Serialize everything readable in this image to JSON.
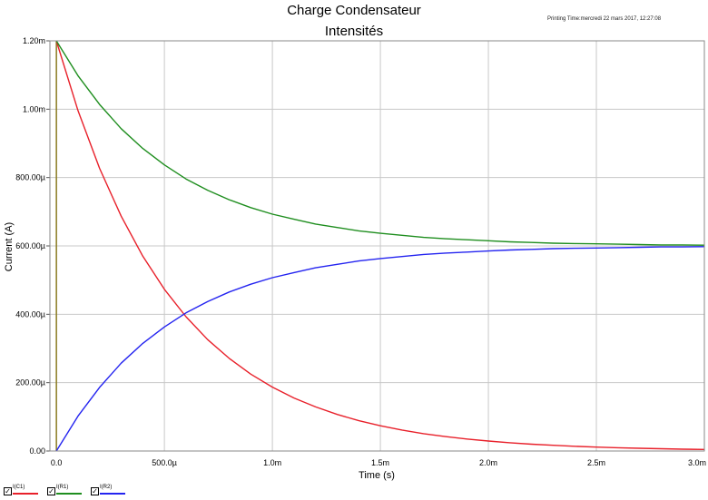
{
  "header": {
    "title": "Charge Condensateur",
    "subtitle": "Intensités",
    "printing_time": "Printing Time:mercredi 22 mars 2017, 12:27:08"
  },
  "chart_data": {
    "type": "line",
    "title": "Intensités",
    "xlabel": "Time (s)",
    "ylabel": "Current (A)",
    "xlim": [
      -3e-05,
      0.003
    ],
    "ylim": [
      0,
      0.0012
    ],
    "grid": true,
    "legend_position": "bottom-left",
    "x_ticks": [
      0,
      0.0005,
      0.001,
      0.0015,
      0.002,
      0.0025,
      0.003
    ],
    "x_tick_labels": [
      "0.0",
      "500.0µ",
      "1.0m",
      "1.5m",
      "2.0m",
      "2.5m",
      "3.0m"
    ],
    "y_ticks": [
      0,
      0.0002,
      0.0004,
      0.0006,
      0.0008,
      0.001,
      0.0012
    ],
    "y_tick_labels": [
      "0.00",
      "200.00µ",
      "400.00µ",
      "600.00µ",
      "800.00µ",
      "1.00m",
      "1.20m"
    ],
    "x": [
      0,
      0.0001,
      0.0002,
      0.0003,
      0.0004,
      0.0005,
      0.0006,
      0.0007,
      0.0008,
      0.0009,
      0.001,
      0.0011,
      0.0012,
      0.0013,
      0.0014,
      0.0015,
      0.0016,
      0.0017,
      0.0018,
      0.0019,
      0.002,
      0.0021,
      0.0022,
      0.0023,
      0.0024,
      0.0025,
      0.0026,
      0.0027,
      0.0028,
      0.0029,
      0.003
    ],
    "series": [
      {
        "name": "I(C1)",
        "color": "#e8202a",
        "values": [
          0.0012,
          0.000996,
          0.000827,
          0.000687,
          0.00057,
          0.000473,
          0.000393,
          0.000326,
          0.000271,
          0.000225,
          0.000187,
          0.000155,
          0.000129,
          0.000107,
          8.88e-05,
          7.37e-05,
          6.12e-05,
          5.08e-05,
          4.22e-05,
          3.5e-05,
          2.91e-05,
          2.41e-05,
          2e-05,
          1.66e-05,
          1.38e-05,
          1.15e-05,
          9.5e-06,
          7.9e-06,
          6.6e-06,
          5.4e-06,
          4.5e-06
        ]
      },
      {
        "name": "I(R1)",
        "color": "#1f8e1f",
        "values": [
          0.0012,
          0.001098,
          0.001014,
          0.000943,
          0.000885,
          0.000837,
          0.000796,
          0.000763,
          0.000735,
          0.000712,
          0.000693,
          0.000678,
          0.000664,
          0.000654,
          0.000644,
          0.000637,
          0.000631,
          0.000625,
          0.000621,
          0.000618,
          0.000615,
          0.000612,
          0.00061,
          0.000608,
          0.000607,
          0.000606,
          0.000605,
          0.000604,
          0.000603,
          0.000603,
          0.000602
        ]
      },
      {
        "name": "I(R2)",
        "color": "#2424f0",
        "values": [
          0,
          0.000102,
          0.000186,
          0.000257,
          0.000315,
          0.000363,
          0.000404,
          0.000437,
          0.000465,
          0.000488,
          0.000507,
          0.000522,
          0.000536,
          0.000546,
          0.000556,
          0.000563,
          0.000569,
          0.000575,
          0.000579,
          0.000582,
          0.000585,
          0.000588,
          0.00059,
          0.000592,
          0.000593,
          0.000594,
          0.000595,
          0.000596,
          0.000597,
          0.000597,
          0.000598
        ]
      }
    ]
  }
}
